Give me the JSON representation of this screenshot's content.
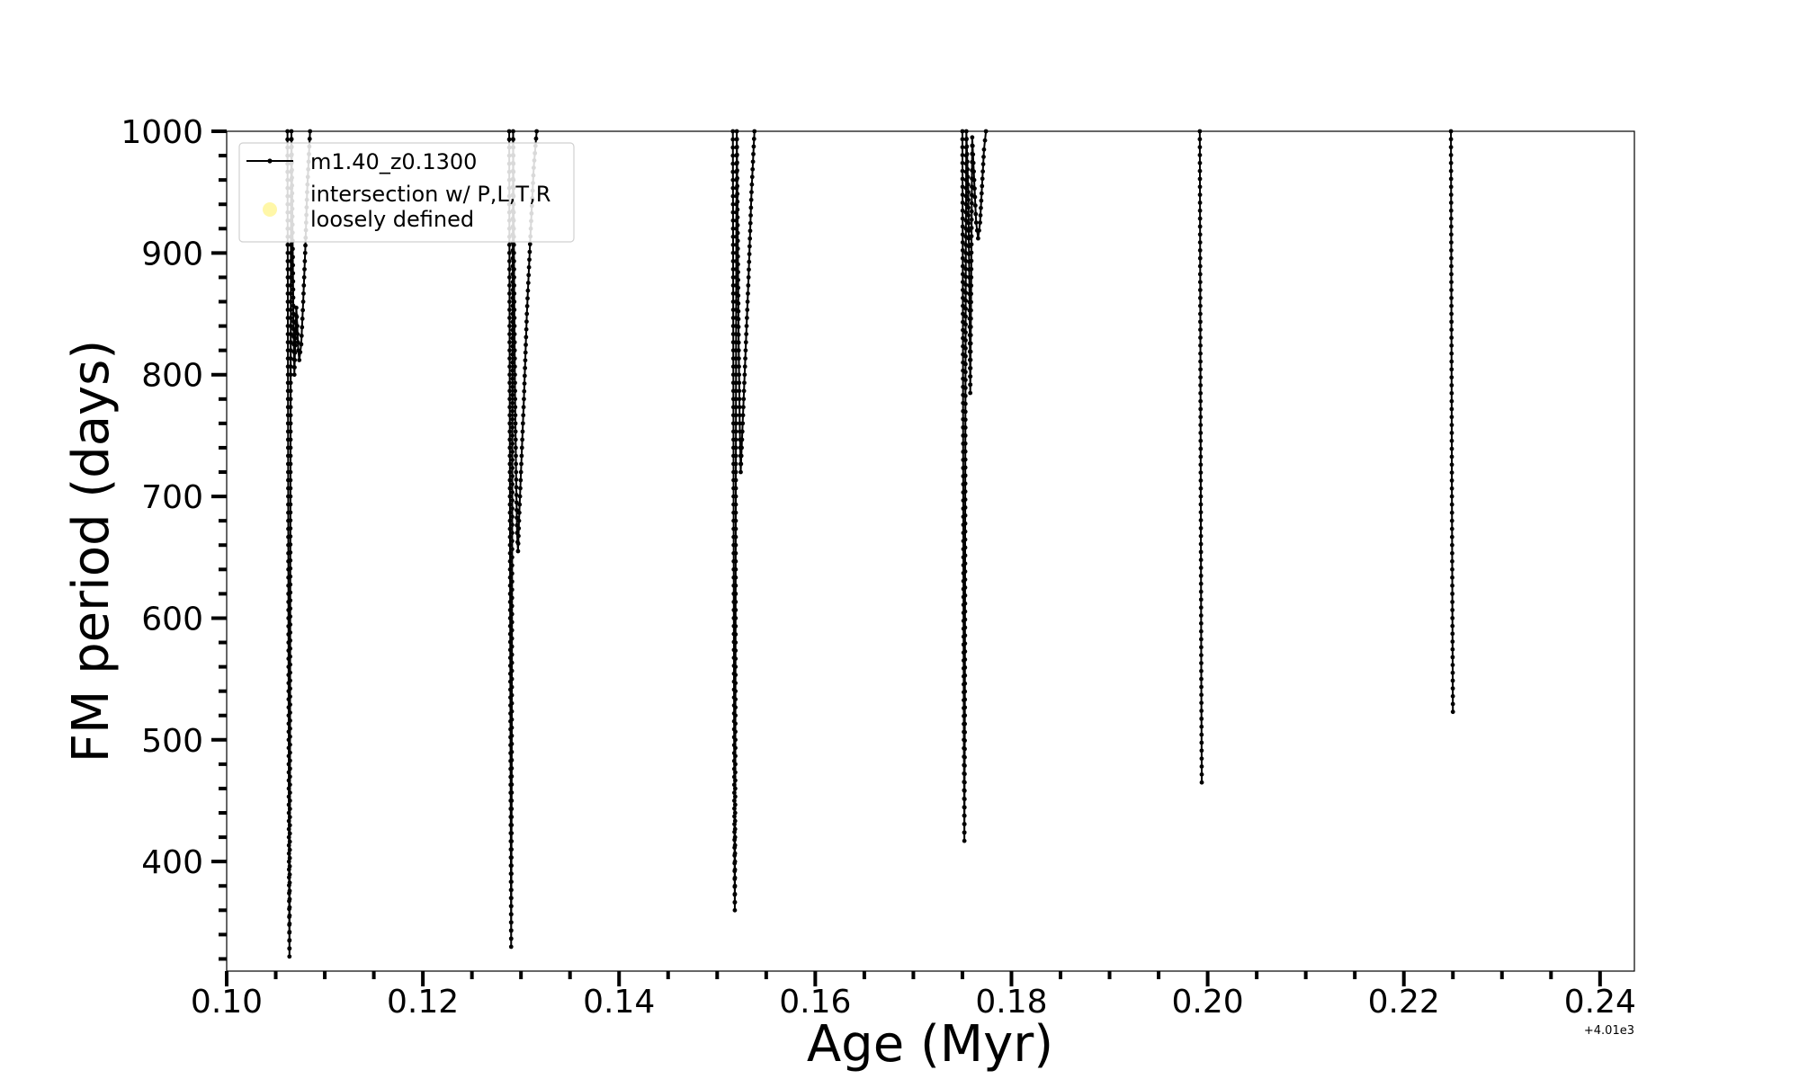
{
  "chart_data": {
    "type": "line",
    "xlabel": "Age (Myr)",
    "ylabel": "FM period (days)",
    "x_offset_label": "+4.01e3",
    "xlim": [
      0.1,
      0.2435
    ],
    "ylim": [
      310,
      1000
    ],
    "x_ticks": [
      {
        "value": 0.1,
        "label": "0.10"
      },
      {
        "value": 0.12,
        "label": "0.12"
      },
      {
        "value": 0.14,
        "label": "0.14"
      },
      {
        "value": 0.16,
        "label": "0.16"
      },
      {
        "value": 0.18,
        "label": "0.18"
      },
      {
        "value": 0.2,
        "label": "0.20"
      },
      {
        "value": 0.22,
        "label": "0.22"
      },
      {
        "value": 0.24,
        "label": "0.24"
      }
    ],
    "y_ticks": [
      {
        "value": 400,
        "label": "400"
      },
      {
        "value": 500,
        "label": "500"
      },
      {
        "value": 600,
        "label": "600"
      },
      {
        "value": 700,
        "label": "700"
      },
      {
        "value": 800,
        "label": "800"
      },
      {
        "value": 900,
        "label": "900"
      },
      {
        "value": 1000,
        "label": "1000"
      }
    ],
    "grid": false,
    "legend_position": "top-left",
    "legend": [
      {
        "label": "m1.40_z0.1300",
        "marker": "line-with-dots",
        "color": "#000000"
      },
      {
        "label": "intersection w/ P,L,T,R\nloosely defined",
        "marker": "circle",
        "color": "#fff7a8"
      }
    ],
    "series": [
      {
        "name": "m1.40_z0.1300",
        "color": "#000000",
        "segments": [
          [
            [
              0.1062,
              1000
            ],
            [
              0.10625,
              800
            ],
            [
              0.1063,
              600
            ],
            [
              0.10635,
              400
            ],
            [
              0.1064,
              322
            ],
            [
              0.10645,
              450
            ],
            [
              0.1065,
              700
            ],
            [
              0.10655,
              900
            ],
            [
              0.1066,
              1000
            ],
            [
              0.1067,
              930
            ],
            [
              0.1068,
              850
            ],
            [
              0.1069,
              800
            ],
            [
              0.107,
              830
            ],
            [
              0.1071,
              855
            ],
            [
              0.1072,
              840
            ],
            [
              0.1073,
              820
            ],
            [
              0.1074,
              812
            ],
            [
              0.1076,
              825
            ],
            [
              0.1078,
              860
            ],
            [
              0.108,
              900
            ],
            [
              0.1082,
              950
            ],
            [
              0.1085,
              1000
            ]
          ],
          [
            [
              0.1288,
              1000
            ],
            [
              0.12885,
              800
            ],
            [
              0.1289,
              600
            ],
            [
              0.12895,
              450
            ],
            [
              0.129,
              330
            ],
            [
              0.12905,
              450
            ],
            [
              0.1291,
              650
            ],
            [
              0.12915,
              850
            ],
            [
              0.1292,
              1000
            ],
            [
              0.1293,
              880
            ],
            [
              0.1294,
              780
            ],
            [
              0.1295,
              720
            ],
            [
              0.1296,
              670
            ],
            [
              0.1297,
              655
            ],
            [
              0.1298,
              680
            ],
            [
              0.13,
              720
            ],
            [
              0.1303,
              780
            ],
            [
              0.1306,
              850
            ],
            [
              0.131,
              920
            ],
            [
              0.1313,
              970
            ],
            [
              0.1316,
              1000
            ]
          ],
          [
            [
              0.1516,
              1000
            ],
            [
              0.15165,
              800
            ],
            [
              0.1517,
              600
            ],
            [
              0.15175,
              450
            ],
            [
              0.1518,
              360
            ],
            [
              0.15185,
              480
            ],
            [
              0.1519,
              700
            ],
            [
              0.15195,
              900
            ],
            [
              0.152,
              1000
            ],
            [
              0.1521,
              910
            ],
            [
              0.1522,
              820
            ],
            [
              0.1523,
              760
            ],
            [
              0.1524,
              720
            ],
            [
              0.1526,
              760
            ],
            [
              0.1529,
              820
            ],
            [
              0.1532,
              880
            ],
            [
              0.1535,
              950
            ],
            [
              0.1538,
              1000
            ]
          ],
          [
            [
              0.175,
              1000
            ],
            [
              0.17505,
              850
            ],
            [
              0.1751,
              650
            ],
            [
              0.17515,
              500
            ],
            [
              0.1752,
              417
            ],
            [
              0.17525,
              520
            ],
            [
              0.1753,
              750
            ],
            [
              0.17535,
              900
            ],
            [
              0.1754,
              1000
            ],
            [
              0.1756,
              950
            ],
            [
              0.1757,
              880
            ],
            [
              0.1758,
              785
            ],
            [
              0.1759,
              880
            ],
            [
              0.176,
              995
            ],
            [
              0.1762,
              960
            ],
            [
              0.1764,
              925
            ],
            [
              0.1766,
              912
            ],
            [
              0.1768,
              925
            ],
            [
              0.177,
              955
            ],
            [
              0.1772,
              985
            ],
            [
              0.1774,
              1000
            ]
          ],
          [
            [
              0.1992,
              1000
            ],
            [
              0.19925,
              850
            ],
            [
              0.1993,
              700
            ],
            [
              0.19935,
              550
            ],
            [
              0.1994,
              465
            ]
          ],
          [
            [
              0.2248,
              1000
            ],
            [
              0.22485,
              850
            ],
            [
              0.2249,
              700
            ],
            [
              0.22495,
              600
            ],
            [
              0.225,
              523
            ]
          ]
        ]
      }
    ]
  }
}
